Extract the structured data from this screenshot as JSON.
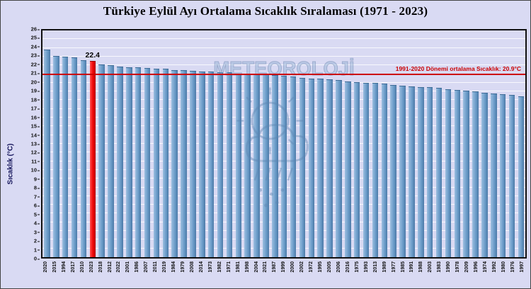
{
  "title": "Türkiye Eylül Ayı Ortalama Sıcaklık Sıralaması (1971 - 2023)",
  "watermark_text": "METEOROLOJİ",
  "chart_data": {
    "type": "bar",
    "title": "Türkiye Eylül Ayı Ortalama Sıcaklık Sıralaması (1971 - 2023)",
    "xlabel": "",
    "ylabel": "Sıcaklık (°C)",
    "ylim": [
      0,
      26
    ],
    "ytick_step": 1,
    "yticks": [
      0,
      1,
      2,
      3,
      4,
      5,
      6,
      7,
      8,
      9,
      10,
      11,
      12,
      13,
      14,
      15,
      16,
      17,
      18,
      19,
      20,
      21,
      22,
      23,
      24,
      25,
      26
    ],
    "grid": true,
    "bar_color": "#6b9cc9",
    "highlight_color": "#ee0404",
    "categories": [
      "2020",
      "2015",
      "1994",
      "2017",
      "2010",
      "2023",
      "2018",
      "2012",
      "2022",
      "2001",
      "1986",
      "2007",
      "2011",
      "2019",
      "1984",
      "1979",
      "2008",
      "2014",
      "1973",
      "1982",
      "1971",
      "1981",
      "1998",
      "2004",
      "2021",
      "1987",
      "1999",
      "2000",
      "2002",
      "1972",
      "1995",
      "2005",
      "2006",
      "2016",
      "1975",
      "1993",
      "2013",
      "1989",
      "1977",
      "1985",
      "1991",
      "1988",
      "2003",
      "1983",
      "1990",
      "1978",
      "2009",
      "1996",
      "1974",
      "1992",
      "1980",
      "1976",
      "1997"
    ],
    "values": [
      23.7,
      23.0,
      22.9,
      22.8,
      22.5,
      22.4,
      22.0,
      21.9,
      21.8,
      21.7,
      21.7,
      21.6,
      21.5,
      21.5,
      21.4,
      21.4,
      21.3,
      21.2,
      21.2,
      21.1,
      21.1,
      21.0,
      21.0,
      20.9,
      20.9,
      20.8,
      20.7,
      20.6,
      20.5,
      20.4,
      20.4,
      20.3,
      20.2,
      20.1,
      20.0,
      19.9,
      19.9,
      19.8,
      19.7,
      19.6,
      19.5,
      19.4,
      19.4,
      19.3,
      19.2,
      19.1,
      19.0,
      18.9,
      18.8,
      18.7,
      18.6,
      18.5,
      18.4
    ],
    "highlight": {
      "category": "2023",
      "value_label": "22.4"
    },
    "reference_line": {
      "value": 20.9,
      "label": "1991-2020 Dönemi ortalama Sıcaklık: 20.9°C",
      "color": "#cc0000"
    },
    "legend_position": "none"
  }
}
